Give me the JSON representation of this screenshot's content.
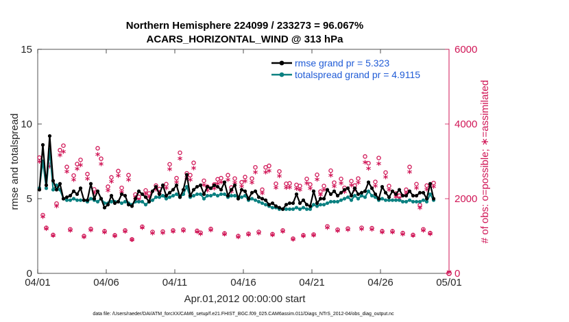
{
  "chart_data": {
    "type": "line",
    "title": "Northern Hemisphere 224099 / 233273 = 96.067%",
    "subtitle": "ACARS_HORIZONTAL_WIND @ 313 hPa",
    "xlabel": "Apr.01,2012 00:00:00 start",
    "ylabel_left": "rmse and totalspread",
    "ylabel_right": "# of obs: o=possible; ∗=assimilated",
    "footnote": "data file: /Users/raeder/DAI/ATM_forcXX/CAM6_setup/f.e21.FHIST_BGC.f09_025.CAM6assim.011/Diags_NTrS_2012-04/obs_diag_output.nc",
    "x_ticks": [
      {
        "day": 0,
        "label": "04/01"
      },
      {
        "day": 5,
        "label": "04/06"
      },
      {
        "day": 10,
        "label": "04/11"
      },
      {
        "day": 15,
        "label": "04/16"
      },
      {
        "day": 20,
        "label": "04/21"
      },
      {
        "day": 25,
        "label": "04/26"
      },
      {
        "day": 30,
        "label": "05/01"
      }
    ],
    "y_left_ticks": [
      "0",
      "5",
      "10",
      "15"
    ],
    "y_right_ticks": [
      "0",
      "2000",
      "4000",
      "6000"
    ],
    "ylim_left": [
      0,
      15
    ],
    "ylim_right": [
      0,
      6000
    ],
    "xlim": [
      0,
      30
    ],
    "x_step_days": 0.25,
    "colors": {
      "rmse": "#000000",
      "spread": "#0a8080",
      "obs": "#d01556",
      "legend_text": "#1f5bd6",
      "axis": "#262626"
    },
    "legend": {
      "position": "top-right",
      "rmse_label": "rmse grand pr = 5.323",
      "spread_label": "totalspread grand pr = 4.9115"
    },
    "rmse": [
      5.6,
      8.6,
      5.9,
      9.2,
      6.2,
      5.6,
      6.0,
      5.0,
      5.1,
      5.2,
      5.5,
      5.3,
      5.7,
      4.9,
      4.9,
      6.0,
      5.0,
      5.5,
      5.0,
      4.4,
      4.6,
      5.2,
      4.7,
      4.8,
      5.3,
      5.2,
      4.6,
      4.5,
      5.0,
      5.5,
      5.3,
      5.1,
      4.8,
      5.5,
      5.8,
      5.3,
      5.9,
      5.2,
      5.4,
      5.6,
      5.9,
      5.1,
      5.6,
      6.6,
      5.2,
      5.6,
      5.8,
      5.9,
      5.3,
      5.8,
      5.7,
      5.9,
      5.8,
      5.6,
      6.1,
      5.2,
      5.6,
      5.9,
      5.0,
      5.6,
      5.5,
      5.0,
      5.4,
      5.5,
      5.1,
      5.0,
      4.9,
      4.6,
      4.7,
      4.5,
      4.4,
      4.3,
      4.6,
      4.7,
      4.7,
      5.3,
      4.7,
      4.9,
      4.6,
      4.5,
      5.5,
      4.7,
      5.0,
      5.0,
      5.6,
      5.3,
      5.5,
      5.2,
      5.4,
      5.6,
      5.7,
      5.2,
      5.7,
      5.3,
      5.4,
      5.5,
      6.1,
      5.7,
      5.3,
      5.0,
      5.8,
      5.4,
      5.1,
      5.5,
      5.3,
      5.6,
      5.2,
      5.2,
      5.5,
      5.2,
      5.2,
      5.4,
      5.4,
      5.0,
      6.0,
      5.0
    ],
    "spread": [
      5.7,
      7.5,
      5.7,
      8.3,
      5.6,
      5.9,
      5.6,
      5.0,
      4.9,
      4.9,
      5.0,
      4.9,
      4.9,
      4.9,
      4.8,
      5.0,
      4.9,
      4.8,
      5.0,
      4.7,
      4.7,
      4.8,
      4.8,
      4.8,
      4.7,
      4.8,
      4.7,
      4.6,
      4.8,
      4.8,
      4.8,
      4.6,
      4.8,
      4.9,
      5.1,
      5.1,
      5.2,
      5.0,
      5.1,
      5.2,
      5.3,
      5.1,
      5.3,
      5.8,
      5.1,
      5.2,
      5.3,
      5.3,
      5.0,
      5.2,
      5.2,
      5.3,
      5.2,
      5.3,
      5.3,
      5.1,
      5.2,
      5.2,
      5.1,
      5.1,
      5.2,
      4.9,
      5.0,
      4.9,
      4.8,
      4.7,
      4.6,
      4.5,
      4.4,
      4.4,
      4.3,
      4.3,
      4.3,
      4.3,
      4.3,
      4.4,
      4.3,
      4.4,
      4.3,
      4.3,
      4.6,
      4.5,
      4.6,
      4.6,
      4.7,
      4.8,
      4.8,
      4.8,
      4.9,
      5.0,
      5.1,
      4.9,
      5.2,
      5.0,
      5.2,
      5.1,
      5.5,
      5.2,
      5.1,
      4.9,
      5.0,
      4.9,
      4.9,
      4.9,
      4.9,
      4.9,
      4.8,
      4.8,
      4.9,
      4.8,
      4.8,
      4.8,
      4.9,
      4.8,
      5.3,
      4.9
    ],
    "obs_possible": [
      3100,
      1560,
      1220,
      3000,
      1030,
      1870,
      3300,
      3420,
      2850,
      1180,
      2620,
      2930,
      3040,
      1000,
      2660,
      1190,
      2250,
      3350,
      3070,
      1130,
      2320,
      2570,
      1020,
      2740,
      2290,
      1150,
      2630,
      910,
      2110,
      2050,
      1250,
      2220,
      2140,
      1110,
      2350,
      2260,
      1120,
      2390,
      2920,
      1150,
      2550,
      3230,
      1170,
      2680,
      2630,
      2960,
      1140,
      1090,
      2480,
      2320,
      1190,
      2380,
      2520,
      2550,
      1070,
      2630,
      2300,
      2540,
      1000,
      2440,
      2580,
      1060,
      2540,
      2840,
      1110,
      2240,
      2840,
      2880,
      1050,
      2400,
      2730,
      1150,
      2400,
      2410,
      930,
      2370,
      2340,
      1020,
      2530,
      2380,
      1040,
      2640,
      2190,
      2340,
      1260,
      2750,
      2430,
      1170,
      2530,
      2290,
      1200,
      2470,
      2350,
      2540,
      1220,
      3130,
      2950,
      1210,
      2450,
      3090,
      1130,
      2700,
      2340,
      1130,
      2140,
      2080,
      1080,
      2240,
      2850,
      1030,
      2390,
      1830,
      1180,
      2350,
      1080,
      2420
    ],
    "obs_assimilated": [
      2950,
      1480,
      1160,
      2830,
      970,
      1760,
      3130,
      3220,
      2690,
      1110,
      2470,
      2760,
      2860,
      940,
      2500,
      1120,
      2120,
      3150,
      2890,
      1060,
      2180,
      2420,
      960,
      2580,
      2150,
      1080,
      2470,
      860,
      1990,
      1930,
      1180,
      2090,
      2010,
      1040,
      2210,
      2130,
      1050,
      2250,
      2750,
      1080,
      2400,
      3040,
      1100,
      2520,
      2470,
      2780,
      1070,
      1020,
      2330,
      2180,
      1120,
      2240,
      2370,
      2400,
      1010,
      2470,
      2160,
      2390,
      940,
      2290,
      2430,
      1000,
      2390,
      2670,
      1040,
      2110,
      2670,
      2710,
      990,
      2260,
      2570,
      1080,
      2260,
      2270,
      870,
      2230,
      2200,
      960,
      2380,
      2240,
      980,
      2480,
      2060,
      2200,
      1180,
      2590,
      2290,
      1100,
      2380,
      2150,
      1130,
      2320,
      2210,
      2390,
      1150,
      2940,
      2770,
      1140,
      2300,
      2900,
      1060,
      2540,
      2200,
      1060,
      2010,
      1960,
      1010,
      2110,
      2680,
      970,
      2250,
      1720,
      1110,
      2210,
      1020,
      2280
    ],
    "obs_possible_last": 0,
    "obs_assimilated_last": 0
  }
}
